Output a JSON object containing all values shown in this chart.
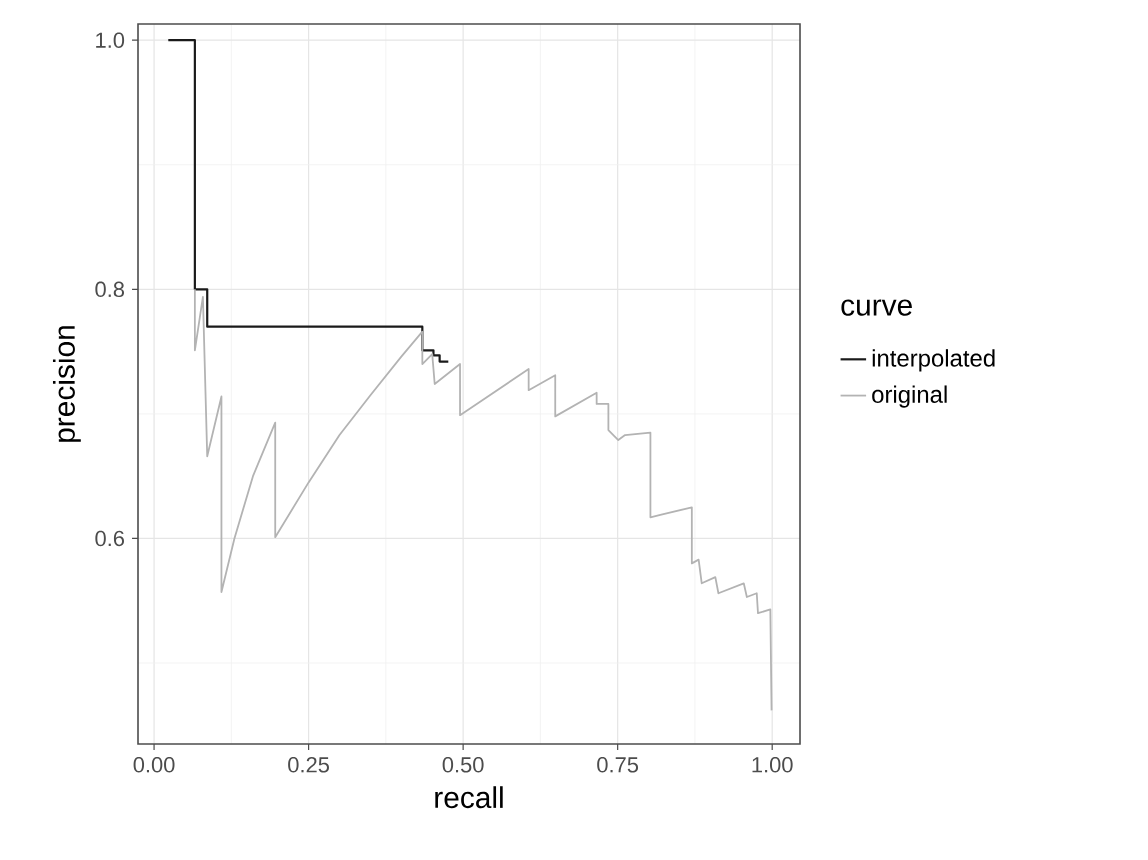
{
  "chart_data": {
    "type": "line",
    "xlabel": "recall",
    "ylabel": "precision",
    "legend_title": "curve",
    "xlim": [
      -0.026,
      1.045
    ],
    "ylim": [
      0.435,
      1.013
    ],
    "xticks": [
      {
        "value": 0,
        "label": "0.00"
      },
      {
        "value": 0.25,
        "label": "0.25"
      },
      {
        "value": 0.5,
        "label": "0.50"
      },
      {
        "value": 0.75,
        "label": "0.75"
      },
      {
        "value": 1,
        "label": "1.00"
      }
    ],
    "yticks": [
      {
        "value": 0.6,
        "label": "0.6"
      },
      {
        "value": 0.8,
        "label": "0.8"
      },
      {
        "value": 1.0,
        "label": "1.0"
      }
    ],
    "grid": true,
    "legend": "right",
    "series": [
      {
        "name": "interpolated",
        "color": "#1a1a1a",
        "x": [
          0.023,
          0.066,
          0.066,
          0.086,
          0.086,
          0.434,
          0.434,
          0.452,
          0.452,
          0.462,
          0.462,
          0.476
        ],
        "values": [
          1.0,
          1.0,
          0.8,
          0.8,
          0.77,
          0.77,
          0.751,
          0.751,
          0.747,
          0.747,
          0.742,
          0.742
        ]
      },
      {
        "name": "original",
        "color": "#b3b3b3",
        "x": [
          0.066,
          0.066,
          0.079,
          0.086,
          0.109,
          0.109,
          0.13,
          0.16,
          0.196,
          0.196,
          0.25,
          0.3,
          0.35,
          0.4,
          0.434,
          0.434,
          0.45,
          0.454,
          0.495,
          0.495,
          0.606,
          0.606,
          0.649,
          0.649,
          0.716,
          0.716,
          0.735,
          0.735,
          0.751,
          0.762,
          0.803,
          0.803,
          0.819,
          0.87,
          0.87,
          0.881,
          0.886,
          0.908,
          0.913,
          0.954,
          0.959,
          0.975,
          0.977,
          0.997,
          0.999
        ],
        "values": [
          0.8,
          0.751,
          0.794,
          0.666,
          0.714,
          0.557,
          0.6,
          0.65,
          0.693,
          0.601,
          0.645,
          0.683,
          0.715,
          0.746,
          0.766,
          0.74,
          0.748,
          0.724,
          0.74,
          0.699,
          0.736,
          0.719,
          0.731,
          0.698,
          0.717,
          0.708,
          0.708,
          0.687,
          0.679,
          0.683,
          0.685,
          0.617,
          0.619,
          0.625,
          0.58,
          0.583,
          0.564,
          0.569,
          0.556,
          0.564,
          0.553,
          0.556,
          0.54,
          0.543,
          0.462
        ]
      }
    ]
  }
}
